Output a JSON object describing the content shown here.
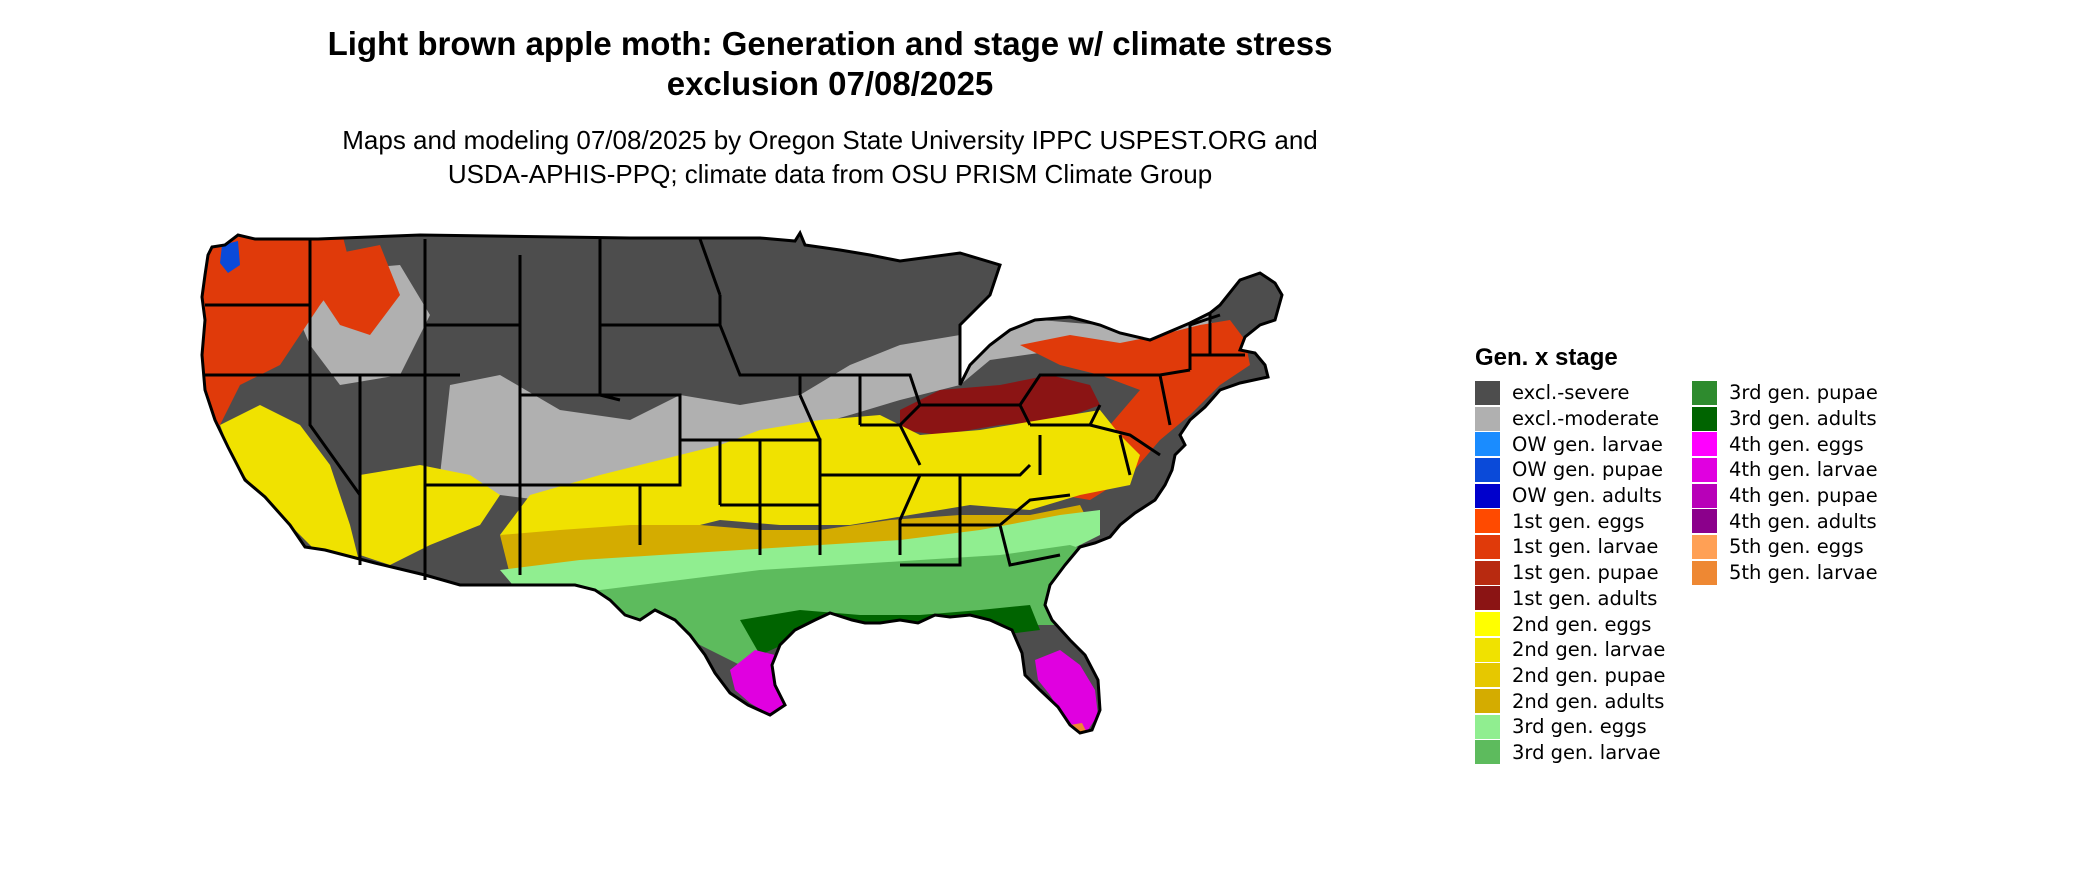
{
  "title_line1": "Light brown apple moth: Generation and stage w/ climate stress",
  "title_line2": "exclusion 07/08/2025",
  "subtitle_line1": "Maps and modeling 07/08/2025 by Oregon State University IPPC USPEST.ORG and",
  "subtitle_line2": "USDA-APHIS-PPQ; climate data from OSU PRISM Climate Group",
  "legend": {
    "title": "Gen. x stage",
    "items": [
      {
        "label": "excl.-severe",
        "color": "#4d4d4d"
      },
      {
        "label": "excl.-moderate",
        "color": "#b0b0b0"
      },
      {
        "label": "OW gen. larvae",
        "color": "#1a8cff"
      },
      {
        "label": "OW gen. pupae",
        "color": "#0a4ad9"
      },
      {
        "label": "OW gen. adults",
        "color": "#0000cc"
      },
      {
        "label": "1st gen. eggs",
        "color": "#ff4a00"
      },
      {
        "label": "1st gen. larvae",
        "color": "#e03a0a"
      },
      {
        "label": "1st gen. pupae",
        "color": "#b82a10"
      },
      {
        "label": "1st gen. adults",
        "color": "#8b1414"
      },
      {
        "label": "2nd gen. eggs",
        "color": "#ffff00"
      },
      {
        "label": "2nd gen. larvae",
        "color": "#f0e200"
      },
      {
        "label": "2nd gen. pupae",
        "color": "#e6c800"
      },
      {
        "label": "2nd gen. adults",
        "color": "#d4ac00"
      },
      {
        "label": "3rd gen. eggs",
        "color": "#90ee90"
      },
      {
        "label": "3rd gen. larvae",
        "color": "#5dbb5d"
      },
      {
        "label": "3rd gen. pupae",
        "color": "#2e8b2e"
      },
      {
        "label": "3rd gen. adults",
        "color": "#006400"
      },
      {
        "label": "4th gen. eggs",
        "color": "#ff00ff"
      },
      {
        "label": "4th gen. larvae",
        "color": "#e000e0"
      },
      {
        "label": "4th gen. pupae",
        "color": "#b800b8"
      },
      {
        "label": "4th gen. adults",
        "color": "#8b008b"
      },
      {
        "label": "5th gen. eggs",
        "color": "#ffa055"
      },
      {
        "label": "5th gen. larvae",
        "color": "#ee8833"
      }
    ]
  },
  "map_colors": {
    "severe": "#4d4d4d",
    "moderate": "#b0b0b0",
    "ow": "#0a4ad9",
    "first_gen": "#e03a0a",
    "first_gen_adults": "#8b1414",
    "second_gen": "#f0e200",
    "second_gen_adults": "#d4ac00",
    "third_gen_eggs": "#90ee90",
    "third_gen": "#5dbb5d",
    "third_gen_adults": "#006400",
    "fourth_gen": "#e000e0",
    "fifth_gen": "#ee8833",
    "border": "#000000"
  }
}
